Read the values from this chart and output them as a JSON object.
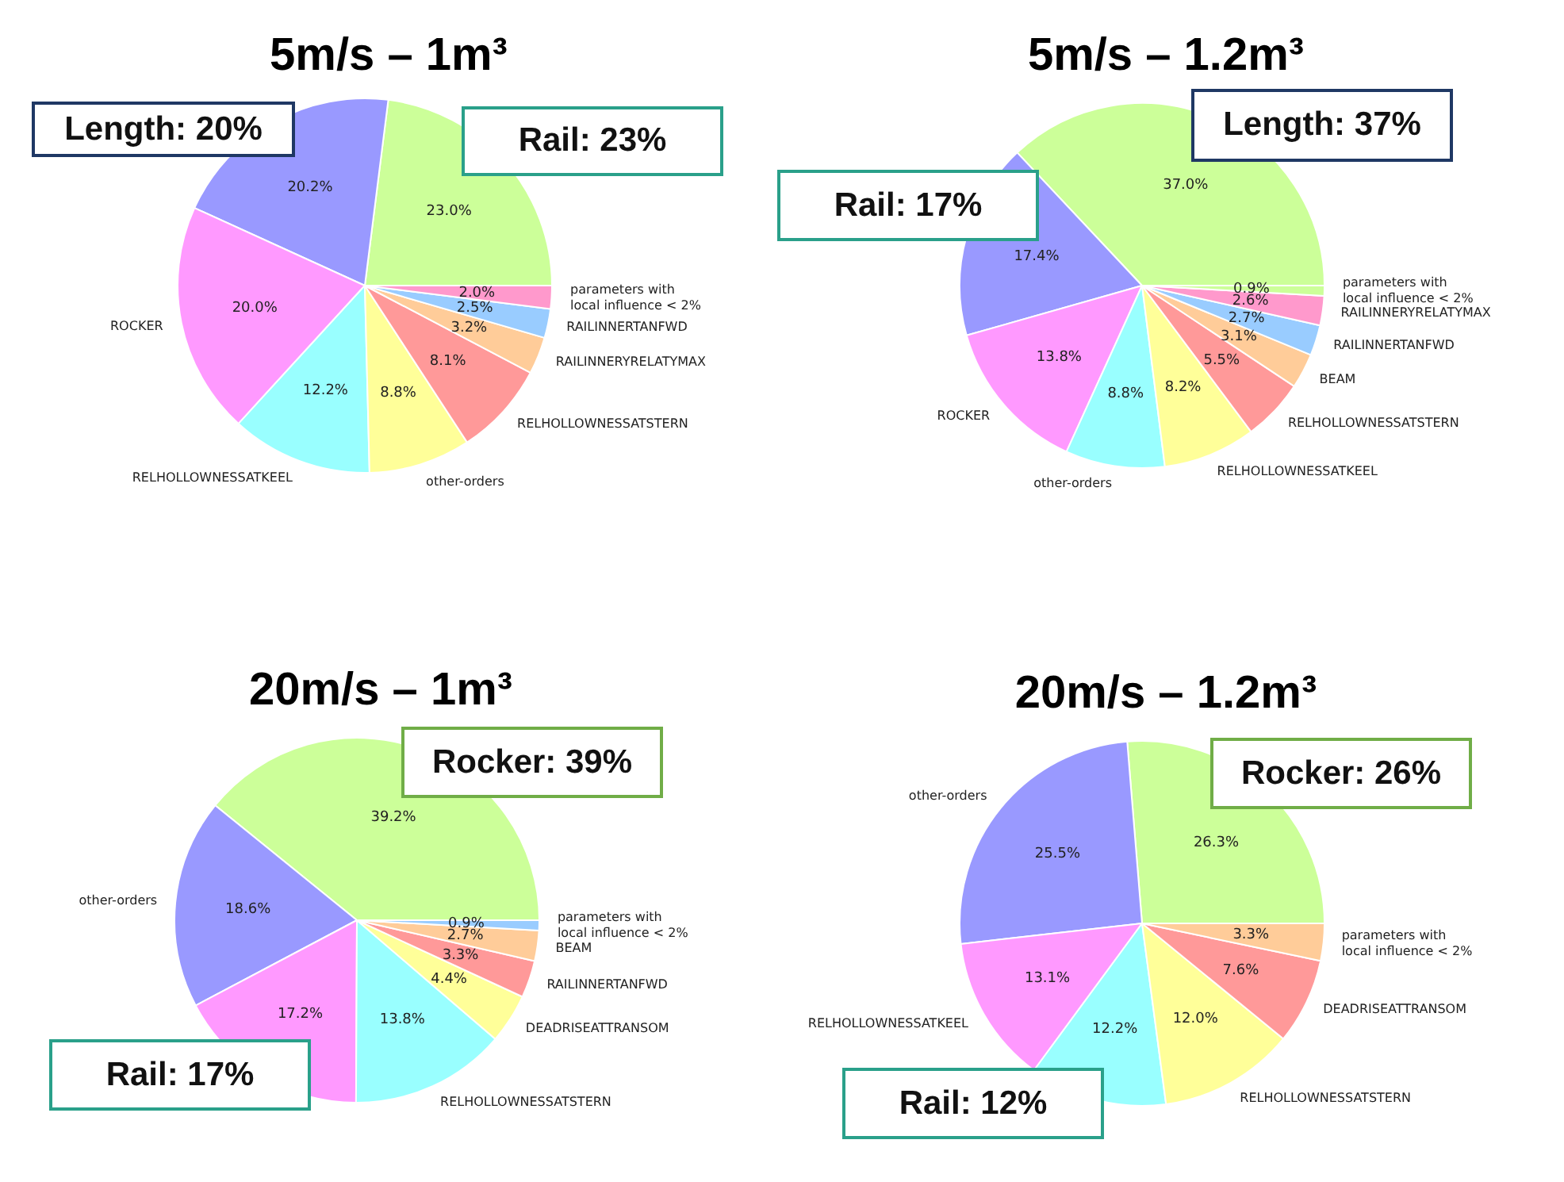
{
  "chart_data": [
    {
      "type": "pie",
      "title": "5m/s – 1m³",
      "legend": false,
      "categories": [
        null,
        null,
        "ROCKER",
        "RELHOLLOWNESSATKEEL",
        "other-orders",
        "RELHOLLOWNESSATSTERN",
        "RAILINNERYRELATYMAX",
        "RAILINNERTANFWD",
        "parameters with\nlocal influence < 2%"
      ],
      "values": [
        23.0,
        20.2,
        20.0,
        12.2,
        8.8,
        8.1,
        3.2,
        2.5,
        2.0
      ],
      "value_labels": [
        "23.0%",
        "20.2%",
        "20.0%",
        "12.2%",
        "8.8%",
        "8.1%",
        "3.2%",
        "2.5%",
        "2.0%"
      ],
      "colors": [
        "#ccff99",
        "#9999ff",
        "#ff99ff",
        "#99ffff",
        "#ffff99",
        "#ff9999",
        "#ffcc99",
        "#99ccff",
        "#ff99cc"
      ],
      "annotations": [
        "Length: 20%",
        "Rail: 23%"
      ]
    },
    {
      "type": "pie",
      "title": "5m/s – 1.2m³",
      "legend": false,
      "categories": [
        null,
        null,
        "ROCKER",
        "other-orders",
        "RELHOLLOWNESSATKEEL",
        "RELHOLLOWNESSATSTERN",
        "BEAM",
        "RAILINNERTANFWD",
        "RAILINNERYRELATYMAX",
        "parameters with\nlocal influence < 2%"
      ],
      "values": [
        37.0,
        17.4,
        13.8,
        8.8,
        8.2,
        5.5,
        3.1,
        2.7,
        2.6,
        0.9
      ],
      "value_labels": [
        "37.0%",
        "17.4%",
        "13.8%",
        "8.8%",
        "8.2%",
        "5.5%",
        "3.1%",
        "2.7%",
        "2.6%",
        "0.9%"
      ],
      "colors": [
        "#ccff99",
        "#9999ff",
        "#ff99ff",
        "#99ffff",
        "#ffff99",
        "#ff9999",
        "#ffcc99",
        "#99ccff",
        "#ff99cc",
        "#ccff99"
      ],
      "annotations": [
        "Length: 37%",
        "Rail: 17%"
      ]
    },
    {
      "type": "pie",
      "title": "20m/s – 1m³",
      "legend": false,
      "categories": [
        null,
        "other-orders",
        null,
        "RELHOLLOWNESSATSTERN",
        "DEADRISEATTRANSOM",
        "RAILINNERTANFWD",
        "BEAM",
        "parameters with\nlocal influence < 2%"
      ],
      "values": [
        39.2,
        18.6,
        17.2,
        13.8,
        4.4,
        3.3,
        2.7,
        0.9
      ],
      "value_labels": [
        "39.2%",
        "18.6%",
        "17.2%",
        "13.8%",
        "4.4%",
        "3.3%",
        "2.7%",
        "0.9%"
      ],
      "colors": [
        "#ccff99",
        "#9999ff",
        "#ff99ff",
        "#99ffff",
        "#ffff99",
        "#ff9999",
        "#ffcc99",
        "#99ccff"
      ],
      "annotations": [
        "Rocker: 39%",
        "Rail: 17%"
      ]
    },
    {
      "type": "pie",
      "title": "20m/s – 1.2m³",
      "legend": false,
      "categories": [
        null,
        "other-orders",
        "RELHOLLOWNESSATKEEL",
        null,
        "RELHOLLOWNESSATSTERN",
        "DEADRISEATTRANSOM",
        "parameters with\nlocal influence < 2%"
      ],
      "values": [
        26.3,
        25.5,
        13.1,
        12.2,
        12.0,
        7.6,
        3.3
      ],
      "value_labels": [
        "26.3%",
        "25.5%",
        "13.1%",
        "12.2%",
        "12.0%",
        "7.6%",
        "3.3%"
      ],
      "colors": [
        "#ccff99",
        "#9999ff",
        "#ff99ff",
        "#99ffff",
        "#ffff99",
        "#ff9999",
        "#ffcc99"
      ],
      "annotations": [
        "Rocker: 26%",
        "Rail: 12%"
      ]
    }
  ]
}
